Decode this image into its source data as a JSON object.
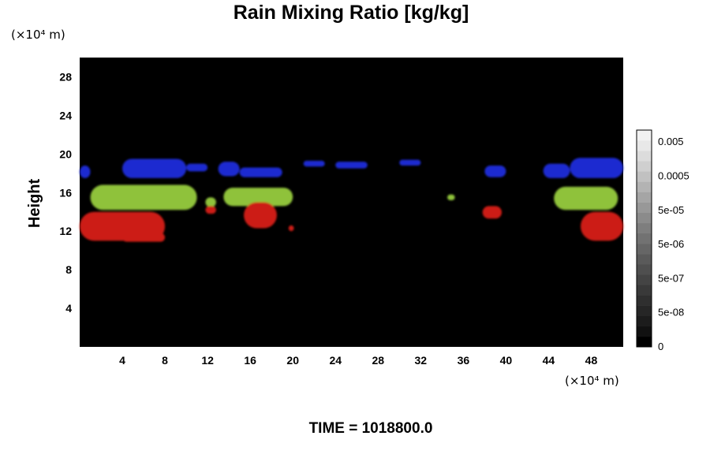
{
  "chart_data": {
    "type": "heatmap",
    "title": "Rain Mixing Ratio [kg/kg]",
    "ylabel": "Height",
    "x_unit": "(×10⁴ m)",
    "y_unit": "(×10⁴ m)",
    "xlim": [
      0,
      51
    ],
    "ylim": [
      0,
      30
    ],
    "x_ticks": [
      4,
      8,
      12,
      16,
      20,
      24,
      28,
      32,
      36,
      40,
      44,
      48
    ],
    "y_ticks": [
      4,
      8,
      12,
      16,
      20,
      24,
      28
    ],
    "background_color": "#000000",
    "colorbar": {
      "labels": [
        "0.005",
        "0.0005",
        "5e-05",
        "5e-06",
        "5e-07",
        "5e-08",
        "0"
      ],
      "colors": [
        "#000000",
        "#111111",
        "#1c1c1c",
        "#262626",
        "#2f2f2f",
        "#393939",
        "#444444",
        "#4f4f4f",
        "#5a5a5a",
        "#666666",
        "#727272",
        "#7e7e7e",
        "#8b8b8b",
        "#989898",
        "#a5a5a5",
        "#b3b3b3",
        "#c1c1c1",
        "#cfcfcf",
        "#dcdcdc",
        "#e8e8e8",
        "#f2f2f2"
      ]
    },
    "series": [
      {
        "color": "#1c2ad0",
        "blobs": [
          {
            "x0": 0,
            "x1": 1,
            "y0": 17.5,
            "y1": 18.8
          },
          {
            "x0": 4,
            "x1": 10,
            "y0": 17.5,
            "y1": 19.5
          },
          {
            "x0": 10,
            "x1": 12,
            "y0": 18.2,
            "y1": 19.0
          },
          {
            "x0": 13,
            "x1": 15,
            "y0": 17.7,
            "y1": 19.2
          },
          {
            "x0": 15,
            "x1": 19,
            "y0": 17.6,
            "y1": 18.6
          },
          {
            "x0": 21,
            "x1": 23,
            "y0": 18.7,
            "y1": 19.3
          },
          {
            "x0": 24,
            "x1": 27,
            "y0": 18.5,
            "y1": 19.2
          },
          {
            "x0": 30,
            "x1": 32,
            "y0": 18.8,
            "y1": 19.4
          },
          {
            "x0": 38,
            "x1": 40,
            "y0": 17.6,
            "y1": 18.8
          },
          {
            "x0": 43.5,
            "x1": 46,
            "y0": 17.5,
            "y1": 19.0
          },
          {
            "x0": 46,
            "x1": 51,
            "y0": 17.5,
            "y1": 19.6
          }
        ]
      },
      {
        "color": "#8fc23a",
        "blobs": [
          {
            "x0": 1,
            "x1": 11,
            "y0": 14.2,
            "y1": 16.8
          },
          {
            "x0": 11.8,
            "x1": 12.8,
            "y0": 14.5,
            "y1": 15.5
          },
          {
            "x0": 13.5,
            "x1": 20,
            "y0": 14.6,
            "y1": 16.5
          },
          {
            "x0": 34.5,
            "x1": 35.2,
            "y0": 15.2,
            "y1": 15.8
          },
          {
            "x0": 44.5,
            "x1": 50.5,
            "y0": 14.2,
            "y1": 16.6
          }
        ]
      },
      {
        "color": "#cc1a14",
        "blobs": [
          {
            "x0": 0,
            "x1": 8,
            "y0": 11.0,
            "y1": 14.0
          },
          {
            "x0": 4,
            "x1": 8,
            "y0": 10.9,
            "y1": 11.8
          },
          {
            "x0": 11.8,
            "x1": 12.8,
            "y0": 13.8,
            "y1": 14.6
          },
          {
            "x0": 15.4,
            "x1": 18.5,
            "y0": 12.3,
            "y1": 15.0
          },
          {
            "x0": 19.6,
            "x1": 20.1,
            "y0": 12.0,
            "y1": 12.6
          },
          {
            "x0": 37.8,
            "x1": 39.6,
            "y0": 13.3,
            "y1": 14.6
          },
          {
            "x0": 47,
            "x1": 51,
            "y0": 11.0,
            "y1": 14.0
          }
        ]
      }
    ]
  },
  "footer": {
    "time_label": "TIME = 1018800.0"
  }
}
